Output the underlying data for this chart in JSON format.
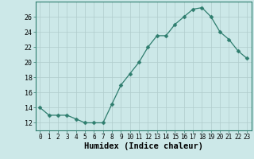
{
  "x": [
    0,
    1,
    2,
    3,
    4,
    5,
    6,
    7,
    8,
    9,
    10,
    11,
    12,
    13,
    14,
    15,
    16,
    17,
    18,
    19,
    20,
    21,
    22,
    23
  ],
  "y": [
    14,
    13,
    13,
    13,
    12.5,
    12,
    12,
    12,
    14.5,
    17,
    18.5,
    20,
    22,
    23.5,
    23.5,
    25,
    26,
    27,
    27.2,
    26,
    24,
    23,
    21.5,
    20.5
  ],
  "line_color": "#2e7d6e",
  "marker": "D",
  "marker_size": 2.5,
  "background_color": "#cce8e8",
  "grid_color": "#b0cccc",
  "xlabel": "Humidex (Indice chaleur)",
  "xlabel_fontsize": 7.5,
  "ylabel_ticks": [
    12,
    14,
    16,
    18,
    20,
    22,
    24,
    26
  ],
  "ylim": [
    11,
    28
  ],
  "xlim": [
    -0.5,
    23.5
  ],
  "xticks": [
    0,
    1,
    2,
    3,
    4,
    5,
    6,
    7,
    8,
    9,
    10,
    11,
    12,
    13,
    14,
    15,
    16,
    17,
    18,
    19,
    20,
    21,
    22,
    23
  ],
  "xtick_labels": [
    "0",
    "1",
    "2",
    "3",
    "4",
    "5",
    "6",
    "7",
    "8",
    "9",
    "10",
    "11",
    "12",
    "13",
    "14",
    "15",
    "16",
    "17",
    "18",
    "19",
    "20",
    "21",
    "22",
    "23"
  ]
}
